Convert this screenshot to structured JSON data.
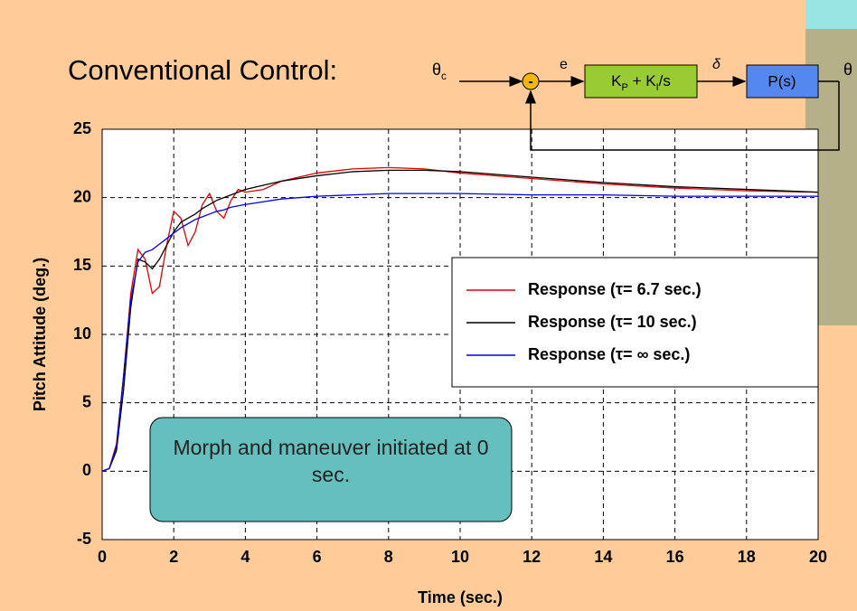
{
  "chart_data": {
    "type": "line",
    "title": "Conventional Control:",
    "x_label": "Time (sec.)",
    "y_label": "Pitch Attitude (deg.)",
    "annotation": "Morph and maneuver initiated at 0 sec.",
    "x": [
      0,
      0.2,
      0.4,
      0.6,
      0.8,
      1.0,
      1.2,
      1.4,
      1.6,
      1.8,
      2.0,
      2.2,
      2.4,
      2.6,
      2.8,
      3.0,
      3.2,
      3.4,
      3.6,
      3.8,
      4.0,
      4.5,
      5,
      6,
      7,
      8,
      9,
      10,
      12,
      14,
      16,
      18,
      20
    ],
    "series": [
      {
        "name": "Response (τ= 6.7 sec.)",
        "color": "#e00000",
        "values": [
          0,
          0.2,
          2,
          7,
          13,
          16.2,
          15.5,
          13,
          13.5,
          16.5,
          19,
          18.5,
          16.5,
          17.5,
          19.5,
          20.3,
          19,
          18.5,
          19.8,
          20.6,
          20.4,
          20.6,
          21.2,
          21.8,
          22.1,
          22.2,
          22.1,
          21.8,
          21.4,
          21,
          20.7,
          20.5,
          20.4
        ]
      },
      {
        "name": "Response (τ= 10 sec.)",
        "color": "#000000",
        "values": [
          0,
          0.2,
          1.5,
          6,
          12,
          15.5,
          15.3,
          14.8,
          15.5,
          16.5,
          17.5,
          18.2,
          18.5,
          18.8,
          19.2,
          19.5,
          19.8,
          20,
          20.2,
          20.4,
          20.6,
          20.9,
          21.2,
          21.6,
          21.9,
          22,
          22,
          21.9,
          21.5,
          21.1,
          20.8,
          20.6,
          20.4
        ]
      },
      {
        "name": "Response (τ= ∞ sec.)",
        "color": "#0000e0",
        "values": [
          0,
          0.2,
          1.8,
          7,
          12.5,
          15.3,
          16,
          16.2,
          16.6,
          17,
          17.4,
          17.8,
          18.1,
          18.4,
          18.6,
          18.8,
          19,
          19.1,
          19.3,
          19.4,
          19.5,
          19.7,
          19.9,
          20.1,
          20.2,
          20.3,
          20.3,
          20.3,
          20.2,
          20.2,
          20.1,
          20.1,
          20.1
        ]
      }
    ],
    "xlim": [
      0,
      20
    ],
    "xticks": [
      0,
      2,
      4,
      6,
      8,
      10,
      12,
      14,
      16,
      18,
      20
    ],
    "ylim": [
      -5,
      25
    ],
    "yticks": [
      -5,
      0,
      5,
      10,
      15,
      20,
      25
    ],
    "grid": true,
    "legend": "right",
    "diagram": {
      "input": [
        {
          "text": "θ"
        },
        {
          "text": "c",
          "sub": true
        }
      ],
      "sum_sign": "-",
      "error": "e",
      "controller": [
        {
          "text": "K"
        },
        {
          "text": "P",
          "sub": true
        },
        {
          "text": " + K"
        },
        {
          "text": "I",
          "sub": true
        },
        {
          "text": "/s"
        }
      ],
      "delta": "δ",
      "plant": "P(s)",
      "output": "θ"
    }
  }
}
